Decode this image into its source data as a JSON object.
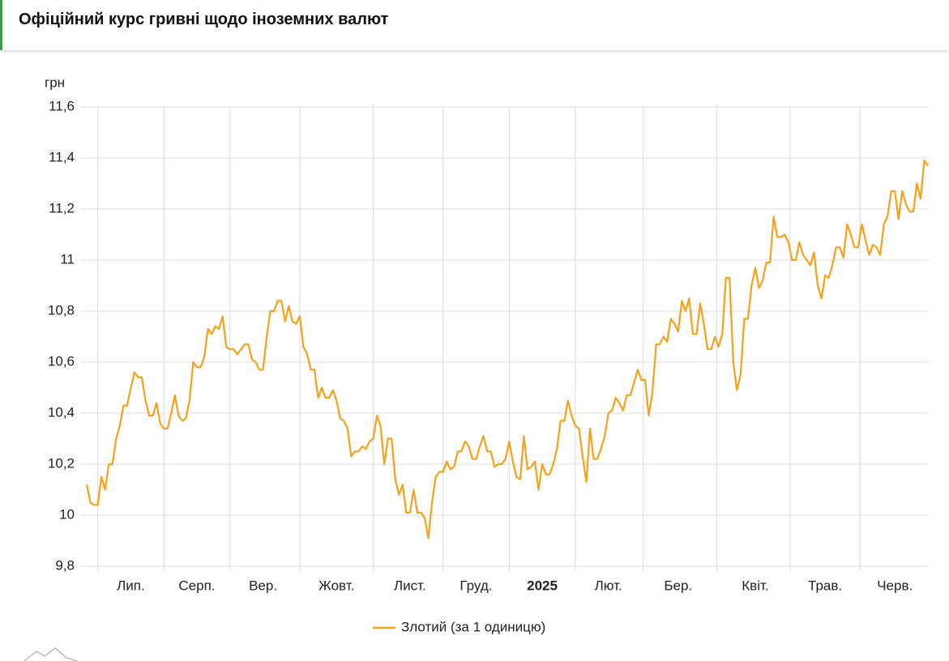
{
  "header": {
    "title": "Офіційний курс гривні щодо іноземних валют"
  },
  "chart_data": {
    "type": "line",
    "ylabel": "грн",
    "categories": [
      null,
      null,
      null,
      null,
      null,
      null,
      null,
      null,
      null,
      null,
      null,
      null,
      "Лип.",
      null,
      null,
      null,
      null,
      null,
      null,
      null,
      null,
      null,
      null,
      null,
      null,
      null,
      null,
      null,
      null,
      null,
      "Серп.",
      null,
      null,
      null,
      null,
      null,
      null,
      null,
      null,
      null,
      null,
      null,
      null,
      null,
      null,
      null,
      null,
      null,
      "Вер.",
      null,
      null,
      null,
      null,
      null,
      null,
      null,
      null,
      null,
      null,
      null,
      null,
      null,
      null,
      null,
      null,
      null,
      null,
      null,
      "Жовт.",
      null,
      null,
      null,
      null,
      null,
      null,
      null,
      null,
      null,
      null,
      null,
      null,
      null,
      null,
      null,
      null,
      null,
      null,
      null,
      "Лист.",
      null,
      null,
      null,
      null,
      null,
      null,
      null,
      null,
      null,
      null,
      null,
      null,
      null,
      null,
      null,
      null,
      null,
      "Груд.",
      null,
      null,
      null,
      null,
      null,
      null,
      null,
      null,
      null,
      null,
      null,
      null,
      null,
      null,
      null,
      null,
      null,
      "2025",
      null,
      null,
      null,
      null,
      null,
      null,
      null,
      null,
      null,
      null,
      null,
      null,
      null,
      null,
      null,
      null,
      null,
      "Лют.",
      null,
      null,
      null,
      null,
      null,
      null,
      null,
      null,
      null,
      null,
      null,
      null,
      null,
      null,
      null,
      null,
      null,
      null,
      "Бер.",
      null,
      null,
      null,
      null,
      null,
      null,
      null,
      null,
      null,
      null,
      null,
      null,
      null,
      null,
      null,
      null,
      null,
      null,
      null,
      null,
      "Квіт.",
      null,
      null,
      null,
      null,
      null,
      null,
      null,
      null,
      null,
      null,
      null,
      null,
      null,
      null,
      null,
      null,
      null,
      null,
      "Трав.",
      null,
      null,
      null,
      null,
      null,
      null,
      null,
      null,
      null,
      null,
      null,
      null,
      null,
      null,
      null,
      null,
      null,
      null,
      "Черв.",
      null,
      null,
      null,
      null,
      null,
      null,
      null,
      null,
      null
    ],
    "series": [
      {
        "name": "Злотий (за 1 одиницю)",
        "color": "#f7a11a",
        "values": [
          10.12,
          10.05,
          10.04,
          10.04,
          10.15,
          10.1,
          10.2,
          10.2,
          10.3,
          10.35,
          10.43,
          10.43,
          10.5,
          10.56,
          10.54,
          10.54,
          10.45,
          10.39,
          10.39,
          10.44,
          10.36,
          10.34,
          10.34,
          10.4,
          10.47,
          10.39,
          10.37,
          10.38,
          10.45,
          10.6,
          10.58,
          10.58,
          10.62,
          10.73,
          10.71,
          10.74,
          10.73,
          10.78,
          10.66,
          10.65,
          10.65,
          10.63,
          10.65,
          10.67,
          10.67,
          10.61,
          10.6,
          10.57,
          10.57,
          10.7,
          10.8,
          10.8,
          10.84,
          10.84,
          10.76,
          10.82,
          10.76,
          10.75,
          10.78,
          10.66,
          10.63,
          10.57,
          10.57,
          10.46,
          10.5,
          10.46,
          10.46,
          10.49,
          10.45,
          10.38,
          10.37,
          10.34,
          10.23,
          10.25,
          10.25,
          10.27,
          10.26,
          10.29,
          10.3,
          10.39,
          10.35,
          10.2,
          10.3,
          10.3,
          10.14,
          10.08,
          10.12,
          10.01,
          10.01,
          10.1,
          10.01,
          10.01,
          9.99,
          9.91,
          10.05,
          10.15,
          10.17,
          10.17,
          10.21,
          10.18,
          10.19,
          10.25,
          10.25,
          10.29,
          10.27,
          10.22,
          10.22,
          10.27,
          10.31,
          10.25,
          10.25,
          10.19,
          10.2,
          10.2,
          10.22,
          10.29,
          10.21,
          10.15,
          10.14,
          10.31,
          10.18,
          10.19,
          10.21,
          10.1,
          10.2,
          10.16,
          10.16,
          10.2,
          10.26,
          10.37,
          10.37,
          10.45,
          10.39,
          10.35,
          10.34,
          10.23,
          10.13,
          10.34,
          10.22,
          10.22,
          10.26,
          10.31,
          10.4,
          10.41,
          10.46,
          10.44,
          10.41,
          10.47,
          10.47,
          10.52,
          10.57,
          10.53,
          10.53,
          10.39,
          10.48,
          10.67,
          10.67,
          10.7,
          10.68,
          10.77,
          10.75,
          10.72,
          10.84,
          10.8,
          10.85,
          10.71,
          10.71,
          10.83,
          10.75,
          10.65,
          10.65,
          10.7,
          10.66,
          10.71,
          10.93,
          10.93,
          10.6,
          10.49,
          10.55,
          10.77,
          10.77,
          10.9,
          10.97,
          10.89,
          10.92,
          10.99,
          10.99,
          11.17,
          11.09,
          11.09,
          11.1,
          11.07,
          11.0,
          11.0,
          11.07,
          11.02,
          11.0,
          10.98,
          11.03,
          10.9,
          10.85,
          10.94,
          10.93,
          10.98,
          11.05,
          11.05,
          11.01,
          11.14,
          11.1,
          11.05,
          11.05,
          11.14,
          11.08,
          11.02,
          11.06,
          11.05,
          11.02,
          11.14,
          11.17,
          11.27,
          11.27,
          11.16,
          11.27,
          11.22,
          11.19,
          11.19,
          11.3,
          11.24,
          11.39,
          11.37
        ]
      }
    ],
    "ylim": [
      9.8,
      11.6
    ],
    "yticks": [
      {
        "value": 9.8,
        "label": "9,8"
      },
      10,
      {
        "value": 10.2,
        "label": "10,2"
      },
      {
        "value": 10.4,
        "label": "10,4"
      },
      {
        "value": 10.6,
        "label": "10,6"
      },
      {
        "value": 10.8,
        "label": "10,8"
      },
      11,
      {
        "value": 11.2,
        "label": "11,2"
      },
      {
        "value": 11.4,
        "label": "11,4"
      },
      {
        "value": 11.6,
        "label": "11,6"
      }
    ],
    "grid": true,
    "legend": "bottom"
  }
}
